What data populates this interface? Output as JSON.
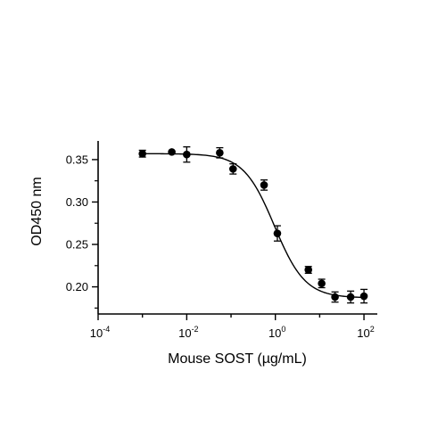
{
  "chart_data": {
    "type": "scatter",
    "title": "",
    "xlabel": "Mouse SOST (µg/mL)",
    "ylabel": "OD450 nm",
    "x_scale": "log10",
    "xlim": [
      0.0001,
      200
    ],
    "ylim": [
      0.168,
      0.372
    ],
    "x_ticks": [
      {
        "value": 0.0001,
        "base": "10",
        "exp": "-4"
      },
      {
        "value": 0.01,
        "base": "10",
        "exp": "-2"
      },
      {
        "value": 1,
        "base": "10",
        "exp": "0"
      },
      {
        "value": 100,
        "base": "10",
        "exp": "2"
      }
    ],
    "y_ticks": [
      {
        "value": 0.2,
        "label": "0.20"
      },
      {
        "value": 0.25,
        "label": "0.25"
      },
      {
        "value": 0.3,
        "label": "0.30"
      },
      {
        "value": 0.35,
        "label": "0.35"
      }
    ],
    "grid": false,
    "legend": "none",
    "marker_color": "#000000",
    "series": [
      {
        "points": [
          {
            "x": 0.001,
            "y": 0.357,
            "err": 0.004
          },
          {
            "x": 0.0046,
            "y": 0.359,
            "err": 0.0
          },
          {
            "x": 0.01,
            "y": 0.356,
            "err": 0.009
          },
          {
            "x": 0.0556,
            "y": 0.358,
            "err": 0.006
          },
          {
            "x": 0.111,
            "y": 0.339,
            "err": 0.006
          },
          {
            "x": 0.556,
            "y": 0.32,
            "err": 0.006
          },
          {
            "x": 1.11,
            "y": 0.263,
            "err": 0.009
          },
          {
            "x": 5.56,
            "y": 0.22,
            "err": 0.004
          },
          {
            "x": 11.1,
            "y": 0.204,
            "err": 0.005
          },
          {
            "x": 22.2,
            "y": 0.188,
            "err": 0.006
          },
          {
            "x": 50,
            "y": 0.188,
            "err": 0.007
          },
          {
            "x": 100,
            "y": 0.189,
            "err": 0.008
          }
        ],
        "fit_curve": {
          "model": "4PL",
          "top": 0.357,
          "bottom": 0.187,
          "ic50": 0.95,
          "hill": 1.25
        }
      }
    ]
  }
}
